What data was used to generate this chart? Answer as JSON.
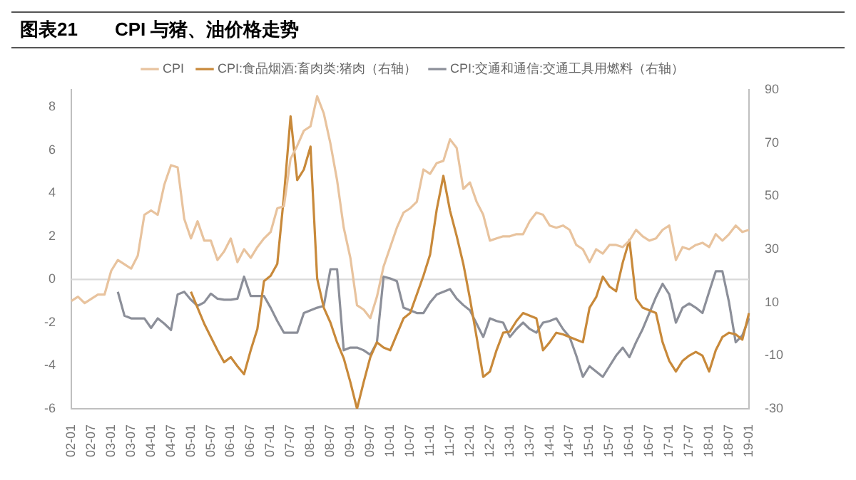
{
  "chart_data": {
    "type": "line",
    "title": "图表21　　CPI 与猪、油价格走势",
    "categories": [
      "02-01",
      null,
      null,
      "02-07",
      null,
      null,
      "03-01",
      null,
      null,
      "03-07",
      null,
      null,
      "04-01",
      null,
      null,
      "04-07",
      null,
      null,
      "05-01",
      null,
      null,
      "05-07",
      null,
      null,
      "06-01",
      null,
      null,
      "06-07",
      null,
      null,
      "07-01",
      null,
      null,
      "07-07",
      null,
      null,
      "08-01",
      null,
      null,
      "08-07",
      null,
      null,
      "09-01",
      null,
      null,
      "09-07",
      null,
      null,
      "10-01",
      null,
      null,
      "10-07",
      null,
      null,
      "11-01",
      null,
      null,
      "11-07",
      null,
      null,
      "12-01",
      null,
      null,
      "12-07",
      null,
      null,
      "13-01",
      null,
      null,
      "13-07",
      null,
      null,
      "14-01",
      null,
      null,
      "14-07",
      null,
      null,
      "15-01",
      null,
      null,
      "15-07",
      null,
      null,
      "16-01",
      null,
      null,
      "16-07",
      null,
      null,
      "17-01",
      null,
      null,
      "17-07",
      null,
      null,
      "18-01",
      null,
      null,
      "18-07",
      null,
      null,
      "19-01"
    ],
    "series": [
      {
        "name": "CPI",
        "color": "#e8c39e",
        "values": [
          -1.0,
          -0.8,
          -1.1,
          -0.9,
          -0.7,
          -0.7,
          0.4,
          0.9,
          0.7,
          0.5,
          1.1,
          3.0,
          3.2,
          3.0,
          4.4,
          5.3,
          5.2,
          2.8,
          1.9,
          2.7,
          1.8,
          1.8,
          0.9,
          1.3,
          1.9,
          0.8,
          1.4,
          1.0,
          1.5,
          1.9,
          2.2,
          3.3,
          3.4,
          5.6,
          6.2,
          6.9,
          7.1,
          8.5,
          7.7,
          6.3,
          4.6,
          2.4,
          1.0,
          -1.2,
          -1.4,
          -1.8,
          -0.8,
          0.6,
          1.5,
          2.4,
          3.1,
          3.3,
          3.6,
          5.1,
          4.9,
          5.4,
          5.5,
          6.5,
          6.1,
          4.2,
          4.5,
          3.6,
          3.0,
          1.8,
          1.9,
          2.0,
          2.0,
          2.1,
          2.1,
          2.7,
          3.1,
          3.0,
          2.5,
          2.4,
          2.5,
          2.3,
          1.6,
          1.4,
          0.8,
          1.4,
          1.2,
          1.6,
          1.6,
          1.5,
          1.8,
          2.3,
          2.0,
          1.8,
          1.9,
          2.3,
          2.5,
          0.9,
          1.5,
          1.4,
          1.6,
          1.7,
          1.5,
          2.1,
          1.8,
          2.1,
          2.5,
          2.2,
          2.3
        ]
      },
      {
        "name": "CPI:食品烟酒:畜肉类:猪肉（右轴）",
        "color": "#c8893a",
        "axis": "y2",
        "values": [
          null,
          null,
          null,
          null,
          null,
          null,
          null,
          null,
          null,
          null,
          null,
          null,
          null,
          null,
          null,
          null,
          null,
          null,
          14,
          8,
          2,
          -3,
          -8,
          -12.5,
          -10.6,
          -14,
          -17,
          -8,
          0,
          18,
          20,
          24.5,
          50,
          80,
          56,
          60,
          68.6,
          19,
          8,
          2.4,
          -5,
          -11,
          -20,
          -30,
          -20,
          -10.6,
          -5,
          -7,
          -8,
          -2,
          4,
          6,
          13,
          20,
          28,
          45,
          57.6,
          44.5,
          35,
          24.5,
          11.4,
          -3,
          -18,
          -16,
          -8,
          -1.4,
          -1,
          3,
          6,
          5,
          4,
          -8,
          -5,
          -1.4,
          -2,
          -3,
          -4,
          -5,
          8,
          12,
          19.7,
          16,
          14.2,
          25,
          33.5,
          11.4,
          8,
          7,
          6,
          -5,
          -12,
          -16,
          -12,
          -10,
          -8.6,
          -10,
          -16,
          -8,
          -3,
          -1.4,
          -2,
          -4,
          6
        ]
      },
      {
        "name": "CPI:交通和通信:交通工具用燃料（右轴）",
        "color": "#8c8f99",
        "axis": "y2",
        "values": [
          null,
          null,
          null,
          null,
          null,
          null,
          null,
          14,
          5,
          4,
          4,
          4,
          0.4,
          4,
          2,
          -0.4,
          13,
          14,
          11,
          8.7,
          10,
          13.3,
          11.4,
          11,
          11,
          11.4,
          19.7,
          12.4,
          12.4,
          12.4,
          8,
          3,
          -1.4,
          -1.4,
          -1.4,
          6,
          7,
          8,
          8.7,
          22.5,
          22.5,
          -8,
          -7,
          -7,
          -8,
          -9.7,
          -5,
          19.7,
          19,
          18,
          8,
          7,
          6,
          6,
          10,
          13,
          14,
          15,
          11.4,
          9,
          7,
          2,
          -3,
          4,
          3,
          2.4,
          -3,
          0,
          2.4,
          0,
          -1.4,
          2.4,
          3,
          4,
          0,
          -3,
          -10,
          -18,
          -14,
          -16,
          -18,
          -14,
          -10,
          -7,
          -10.6,
          -5,
          0,
          6,
          12,
          17,
          13,
          2.4,
          8,
          9.6,
          8,
          6,
          14,
          21.7,
          21.7,
          10,
          -5,
          -2.4,
          4
        ]
      }
    ],
    "ylim": [
      -6,
      8.8
    ],
    "yticks": [
      -6,
      -4,
      -2,
      0,
      2,
      4,
      6,
      8
    ],
    "y2lim": [
      -30,
      90
    ],
    "y2ticks": [
      -30,
      -10,
      10,
      30,
      50,
      70,
      90
    ],
    "ref_lines": [
      {
        "axis": "y",
        "value": 0,
        "color": "#d9d9d9"
      }
    ],
    "grid": false,
    "legend": "top",
    "marker": "none",
    "line_style": "solid"
  }
}
